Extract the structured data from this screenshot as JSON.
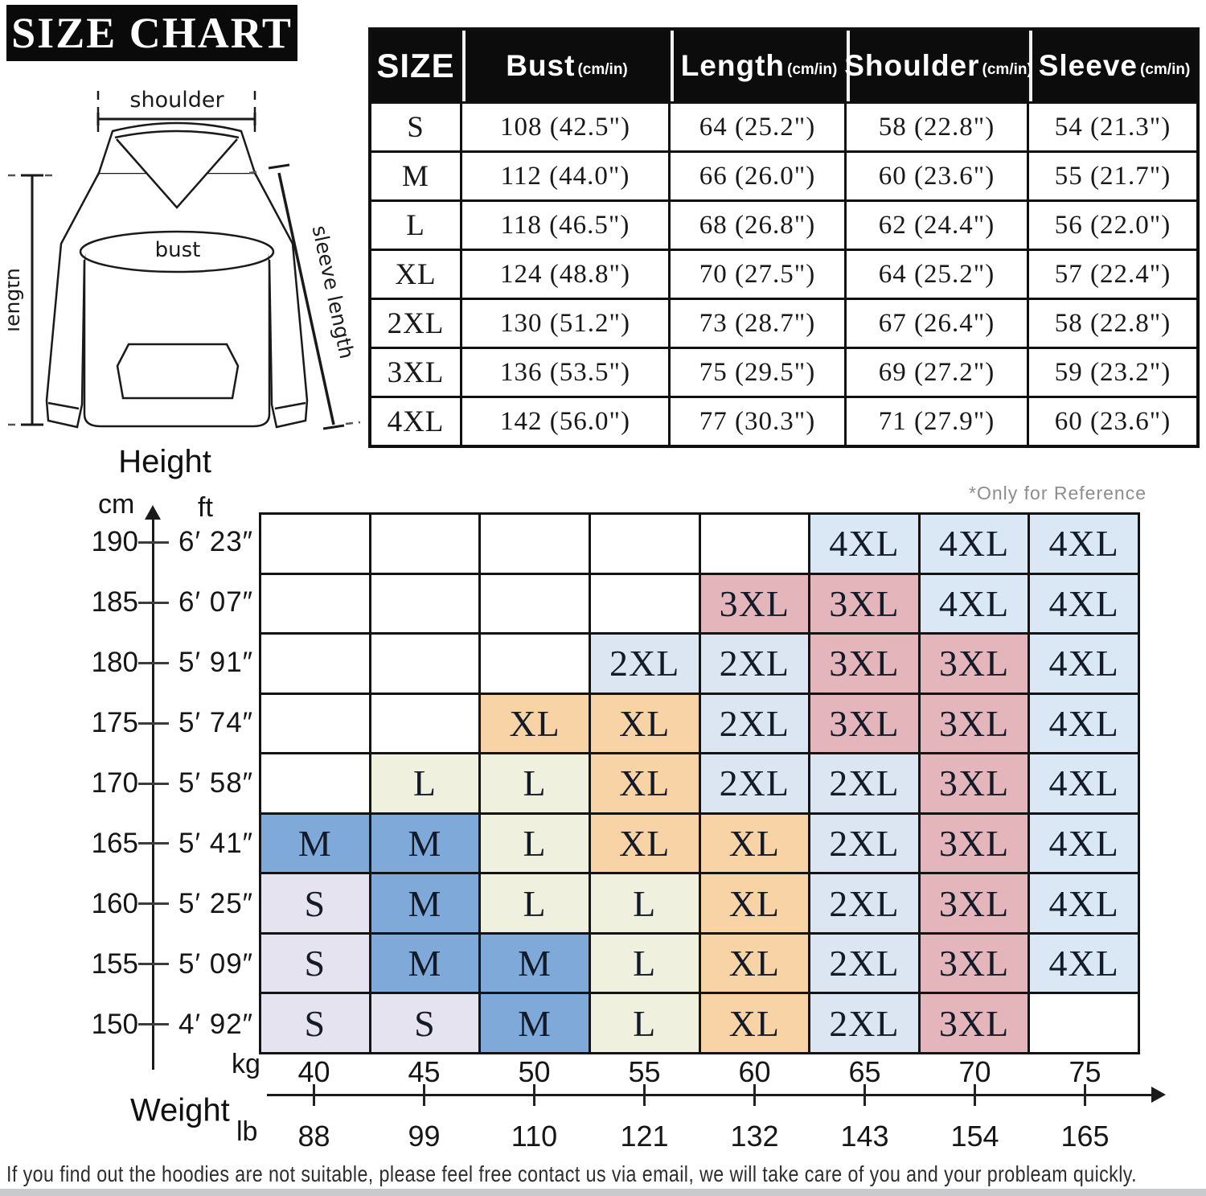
{
  "banner": {
    "title": "SIZE CHART"
  },
  "diagram": {
    "shoulder_label": "shoulder",
    "bust_label": "bust",
    "length_label": "length",
    "sleeve_label": "sleeve length"
  },
  "size_table": {
    "columns": [
      {
        "name": "SIZE",
        "unit": ""
      },
      {
        "name": "Bust",
        "unit": "(cm/in)"
      },
      {
        "name": "Length",
        "unit": "(cm/in)"
      },
      {
        "name": "Shoulder",
        "unit": "(cm/in)"
      },
      {
        "name": "Sleeve",
        "unit": "(cm/in)"
      }
    ],
    "rows": [
      [
        "S",
        "108 (42.5\")",
        "64 (25.2\")",
        "58 (22.8\")",
        "54 (21.3\")"
      ],
      [
        "M",
        "112 (44.0\")",
        "66 (26.0\")",
        "60 (23.6\")",
        "55 (21.7\")"
      ],
      [
        "L",
        "118 (46.5\")",
        "68 (26.8\")",
        "62 (24.4\")",
        "56 (22.0\")"
      ],
      [
        "XL",
        "124 (48.8\")",
        "70 (27.5\")",
        "64 (25.2\")",
        "57 (22.4\")"
      ],
      [
        "2XL",
        "130 (51.2\")",
        "73 (28.7\")",
        "67 (26.4\")",
        "58 (22.8\")"
      ],
      [
        "3XL",
        "136 (53.5\")",
        "75 (29.5\")",
        "69 (27.2\")",
        "59 (23.2\")"
      ],
      [
        "4XL",
        "142 (56.0\")",
        "77 (30.3\")",
        "71 (27.9\")",
        "60 (23.6\")"
      ]
    ]
  },
  "chart_data": {
    "type": "heatmap",
    "reference_note": "*Only for Reference",
    "y_axis": {
      "label": "Height",
      "range_cm": [
        150,
        190
      ],
      "units": [
        {
          "name": "cm",
          "values": [
            190,
            185,
            180,
            175,
            170,
            165,
            160,
            155,
            150
          ]
        },
        {
          "name": "ft",
          "values": [
            "6′ 23″",
            "6′ 07″",
            "5′ 91″",
            "5′ 74″",
            "5′ 58″",
            "5′ 41″",
            "5′ 25″",
            "5′ 09″",
            "4′ 92″"
          ]
        }
      ]
    },
    "x_axis": {
      "label": "Weight",
      "range_kg": [
        40,
        75
      ],
      "units": [
        {
          "name": "kg",
          "values": [
            40,
            45,
            50,
            55,
            60,
            65,
            70,
            75
          ]
        },
        {
          "name": "lb",
          "values": [
            88,
            99,
            110,
            121,
            132,
            143,
            154,
            165
          ]
        }
      ]
    },
    "matrix": [
      [
        "",
        "",
        "",
        "",
        "",
        "4XL",
        "4XL",
        "4XL"
      ],
      [
        "",
        "",
        "",
        "",
        "3XL",
        "3XL",
        "4XL",
        "4XL"
      ],
      [
        "",
        "",
        "",
        "2XL",
        "2XL",
        "3XL",
        "3XL",
        "4XL"
      ],
      [
        "",
        "",
        "XL",
        "XL",
        "2XL",
        "3XL",
        "3XL",
        "4XL"
      ],
      [
        "",
        "L",
        "L",
        "XL",
        "2XL",
        "2XL",
        "3XL",
        "4XL"
      ],
      [
        "M",
        "M",
        "L",
        "XL",
        "XL",
        "2XL",
        "3XL",
        "4XL"
      ],
      [
        "S",
        "M",
        "L",
        "L",
        "XL",
        "2XL",
        "3XL",
        "4XL"
      ],
      [
        "S",
        "M",
        "M",
        "L",
        "XL",
        "2XL",
        "3XL",
        "4XL"
      ],
      [
        "S",
        "S",
        "M",
        "L",
        "XL",
        "2XL",
        "3XL",
        ""
      ]
    ],
    "cell_colors": {
      "S": "#e6e3f0",
      "M": "#7fa9d9",
      "L": "#eff0dd",
      "XL": "#f8d3a6",
      "2XL": "#dbe6f2",
      "3XL": "#e4b6bb",
      "4XL": "#d9e8f4",
      "": "#ffffff"
    },
    "grid": true,
    "legend_position": "none"
  },
  "footer": {
    "disclaimer": "If you find out the hoodies are not suitable, please feel free contact us via email, we will take care of you and your probleam quickly."
  }
}
